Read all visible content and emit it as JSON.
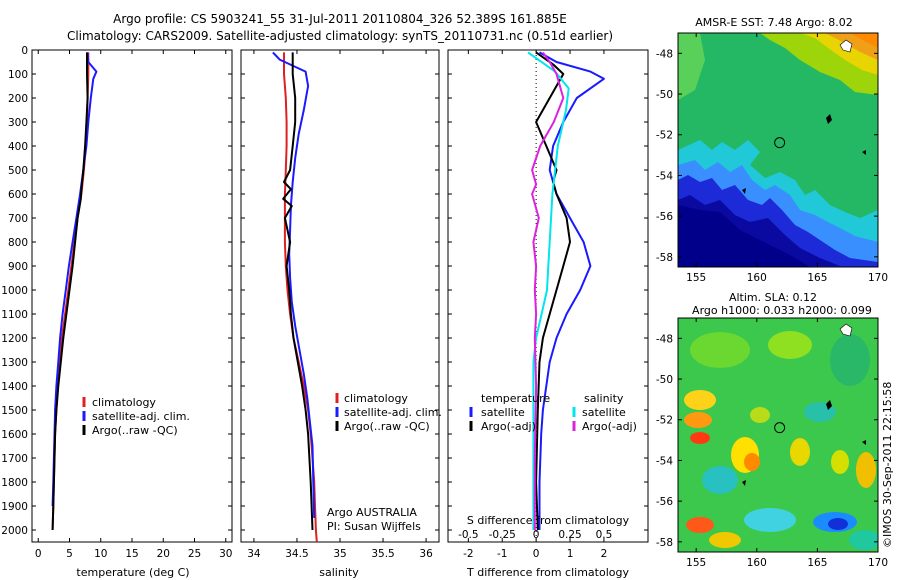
{
  "header": {
    "line1": "Argo profile: CS 5903241_55 31-Jul-2011 20110804_326 52.389S 161.885E",
    "line2": "Climatology: CARS2009. Satellite-adjusted climatology: synTS_20110731.nc (0.51d earlier)"
  },
  "chart_data": [
    {
      "type": "line",
      "panel": "temperature",
      "xlabel": "temperature (deg C)",
      "ylabel": "",
      "xlim": [
        -1,
        31
      ],
      "ylim": [
        2050,
        0
      ],
      "y_reversed": true,
      "xticks": [
        "0",
        "5",
        "10",
        "15",
        "20",
        "25",
        "30"
      ],
      "xtick_values": [
        0,
        5,
        10,
        15,
        20,
        25,
        30
      ],
      "yticks": [
        "0",
        "100",
        "200",
        "300",
        "400",
        "500",
        "600",
        "700",
        "800",
        "900",
        "1000",
        "1100",
        "1200",
        "1300",
        "1400",
        "1500",
        "1600",
        "1700",
        "1800",
        "1900",
        "2000"
      ],
      "ytick_values": [
        0,
        100,
        200,
        300,
        400,
        500,
        600,
        700,
        800,
        900,
        1000,
        1100,
        1200,
        1300,
        1400,
        1500,
        1600,
        1700,
        1800,
        1900,
        2000
      ],
      "legend": [
        "climatology",
        "satellite-adj. clim.",
        "Argo(..raw -QC)"
      ],
      "legend_colors": [
        "#e02020",
        "#1a1aff",
        "#000000"
      ],
      "series": [
        {
          "name": "climatology",
          "color": "#e02020",
          "x": [
            8.0,
            8.0,
            7.9,
            7.8,
            7.6,
            7.3,
            6.9,
            6.3,
            5.8,
            5.3,
            4.8,
            4.3,
            3.8,
            3.4,
            3.1,
            2.9,
            2.7,
            2.6,
            2.5,
            2.4,
            2.3
          ],
          "y": [
            10,
            100,
            200,
            300,
            400,
            500,
            600,
            700,
            800,
            900,
            1000,
            1100,
            1200,
            1300,
            1400,
            1500,
            1600,
            1700,
            1800,
            1900,
            2000
          ]
        },
        {
          "name": "satellite-adj. clim.",
          "color": "#1a1aff",
          "x": [
            7.9,
            8.0,
            9.3,
            8.8,
            8.4,
            8.0,
            7.7,
            7.2,
            6.7,
            6.1,
            5.5,
            4.9,
            4.4,
            3.9,
            3.5,
            3.2,
            2.9,
            2.7,
            2.6,
            2.5,
            2.4,
            2.3
          ],
          "y": [
            10,
            50,
            90,
            120,
            200,
            300,
            400,
            500,
            600,
            700,
            800,
            900,
            1000,
            1100,
            1200,
            1300,
            1400,
            1500,
            1600,
            1700,
            1800,
            1900
          ]
        },
        {
          "name": "Argo(..raw -QC)",
          "color": "#000000",
          "x": [
            7.8,
            7.8,
            7.9,
            7.7,
            7.5,
            7.2,
            6.9,
            6.8,
            6.3,
            5.9,
            5.5,
            5.0,
            4.5,
            4.0,
            3.6,
            3.2,
            2.9,
            2.7,
            2.6,
            2.5,
            2.4,
            2.3
          ],
          "y": [
            10,
            100,
            200,
            300,
            400,
            500,
            580,
            620,
            700,
            800,
            900,
            1000,
            1100,
            1200,
            1300,
            1400,
            1500,
            1600,
            1700,
            1800,
            1900,
            2000
          ]
        }
      ]
    },
    {
      "type": "line",
      "panel": "salinity",
      "xlabel": "salinity",
      "xlim": [
        33.85,
        36.15
      ],
      "ylim": [
        2050,
        0
      ],
      "xticks": [
        "34",
        "34.5",
        "35",
        "35.5",
        "36"
      ],
      "xtick_values": [
        34,
        34.5,
        35,
        35.5,
        36
      ],
      "legend": [
        "climatology",
        "satellite-adj. clim.",
        "Argo(..raw -QC)"
      ],
      "legend_colors": [
        "#e02020",
        "#1a1aff",
        "#000000"
      ],
      "annotation": [
        "Argo AUSTRALIA",
        "PI: Susan Wijffels"
      ],
      "series": [
        {
          "name": "climatology",
          "color": "#e02020",
          "x": [
            34.35,
            34.35,
            34.37,
            34.38,
            34.38,
            34.37,
            34.36,
            34.36,
            34.36,
            34.37,
            34.39,
            34.42,
            34.46,
            34.52,
            34.58,
            34.63,
            34.66,
            34.68,
            34.7,
            34.71,
            34.72,
            34.73
          ],
          "y": [
            10,
            100,
            200,
            300,
            400,
            500,
            600,
            700,
            800,
            900,
            1000,
            1100,
            1200,
            1300,
            1400,
            1500,
            1600,
            1700,
            1800,
            1900,
            2000,
            2050
          ]
        },
        {
          "name": "satellite-adj. clim.",
          "color": "#1a1aff",
          "x": [
            34.22,
            34.3,
            34.6,
            34.63,
            34.58,
            34.52,
            34.48,
            34.45,
            34.43,
            34.42,
            34.41,
            34.42,
            34.44,
            34.48,
            34.53,
            34.58,
            34.62,
            34.65,
            34.68,
            34.69,
            34.7
          ],
          "y": [
            10,
            40,
            90,
            150,
            250,
            350,
            450,
            550,
            650,
            750,
            850,
            950,
            1050,
            1150,
            1250,
            1350,
            1450,
            1550,
            1650,
            1800,
            1950
          ]
        },
        {
          "name": "Argo(..raw -QC)",
          "color": "#000000",
          "x": [
            34.45,
            34.45,
            34.48,
            34.48,
            34.45,
            34.42,
            34.35,
            34.43,
            34.34,
            34.44,
            34.36,
            34.42,
            34.38,
            34.41,
            34.43,
            34.46,
            34.51,
            34.56,
            34.6,
            34.63,
            34.66,
            34.68
          ],
          "y": [
            10,
            100,
            200,
            300,
            400,
            500,
            550,
            580,
            620,
            650,
            700,
            800,
            900,
            1000,
            1100,
            1200,
            1300,
            1400,
            1500,
            1600,
            1800,
            2000
          ]
        }
      ]
    },
    {
      "type": "line",
      "panel": "difference",
      "xlabel": "T difference from climatology",
      "xlabel_top": "S difference from climatology",
      "xlim": [
        -2.6,
        3.3
      ],
      "ylim": [
        2050,
        0
      ],
      "xticks": [
        "-2",
        "-1",
        "0",
        "1",
        "2"
      ],
      "xtick_values": [
        -2,
        -1,
        0,
        1,
        2
      ],
      "s_ticks": [
        "-0.5",
        "-0.25",
        "0",
        "0.25",
        "0.5"
      ],
      "s_tick_values": [
        -0.5,
        -0.25,
        0,
        0.25,
        0.5
      ],
      "legend_title_left": "temperature",
      "legend_title_right": "salinity",
      "legend_left": [
        "satellite",
        "Argo(-adj)"
      ],
      "legend_left_colors": [
        "#1a1aff",
        "#000000"
      ],
      "legend_right": [
        "satellite",
        "Argo(-adj)"
      ],
      "legend_right_colors": [
        "#00e5ee",
        "#dd22dd"
      ],
      "series": [
        {
          "name": "temperature satellite",
          "color": "#1a1aff",
          "x": [
            0.1,
            0.6,
            1.6,
            2.0,
            1.2,
            0.8,
            0.5,
            0.4,
            0.6,
            1.0,
            1.4,
            1.6,
            1.3,
            0.9,
            0.6,
            0.4,
            0.3,
            0.2,
            0.15,
            0.1,
            0.1
          ],
          "y": [
            10,
            50,
            90,
            120,
            200,
            300,
            400,
            500,
            600,
            700,
            800,
            900,
            1000,
            1100,
            1200,
            1300,
            1400,
            1500,
            1600,
            1800,
            2000
          ]
        },
        {
          "name": "temperature Argo(-adj)",
          "color": "#000000",
          "x": [
            0.0,
            0.5,
            0.8,
            0.4,
            0.0,
            0.3,
            0.6,
            0.5,
            0.6,
            0.9,
            1.0,
            0.8,
            0.6,
            0.4,
            0.2,
            0.1,
            0.05,
            0.0,
            0.05
          ],
          "y": [
            10,
            60,
            100,
            200,
            300,
            400,
            500,
            550,
            600,
            700,
            800,
            900,
            1000,
            1100,
            1200,
            1300,
            1500,
            1800,
            2000
          ]
        },
        {
          "name": "salinity satellite",
          "color": "#00e5ee",
          "x": [
            -0.06,
            0.14,
            0.24,
            0.22,
            0.16,
            0.12,
            0.1,
            0.09,
            0.08,
            0.04,
            0.0,
            -0.02,
            -0.02,
            -0.02,
            -0.02,
            -0.02
          ],
          "y": [
            10,
            90,
            160,
            250,
            400,
            600,
            800,
            900,
            1000,
            1100,
            1200,
            1300,
            1500,
            1700,
            1900,
            2000
          ]
        },
        {
          "name": "salinity Argo(-adj)",
          "color": "#dd22dd",
          "x": [
            0.05,
            0.1,
            0.15,
            0.2,
            0.13,
            0.03,
            -0.03,
            0.0,
            -0.03,
            0.02,
            -0.02,
            0.0,
            -0.01,
            0.0,
            -0.01,
            0.0,
            -0.01,
            -0.01
          ],
          "y": [
            10,
            50,
            100,
            200,
            300,
            400,
            500,
            560,
            600,
            700,
            800,
            900,
            1000,
            1100,
            1200,
            1400,
            1700,
            2000
          ]
        }
      ]
    },
    {
      "type": "heatmap",
      "panel": "sst_map",
      "title": "AMSR-E SST: 7.48 Argo: 8.02",
      "xlim": [
        153.5,
        170
      ],
      "ylim": [
        -58.5,
        -47
      ],
      "xticks": [
        "155",
        "160",
        "165",
        "170"
      ],
      "xtick_values": [
        155,
        160,
        165,
        170
      ],
      "yticks": [
        "-48",
        "-50",
        "-52",
        "-54",
        "-56",
        "-58"
      ],
      "ytick_values": [
        -48,
        -50,
        -52,
        -54,
        -56,
        -58
      ],
      "marker": {
        "lon": 161.885,
        "lat": -52.389
      }
    },
    {
      "type": "heatmap",
      "panel": "sla_map",
      "title": "Altim. SLA: 0.12",
      "subtitle": "Argo h1000: 0.033 h2000: 0.099",
      "xlim": [
        153.5,
        170
      ],
      "ylim": [
        -58.5,
        -47
      ],
      "xticks": [
        "155",
        "160",
        "165",
        "170"
      ],
      "xtick_values": [
        155,
        160,
        165,
        170
      ],
      "yticks": [
        "-48",
        "-50",
        "-52",
        "-54",
        "-56",
        "-58"
      ],
      "ytick_values": [
        -48,
        -50,
        -52,
        -54,
        -56,
        -58
      ],
      "marker": {
        "lon": 161.885,
        "lat": -52.389
      }
    }
  ],
  "copyright": "©IMOS 30-Sep-2011 22:15:58"
}
